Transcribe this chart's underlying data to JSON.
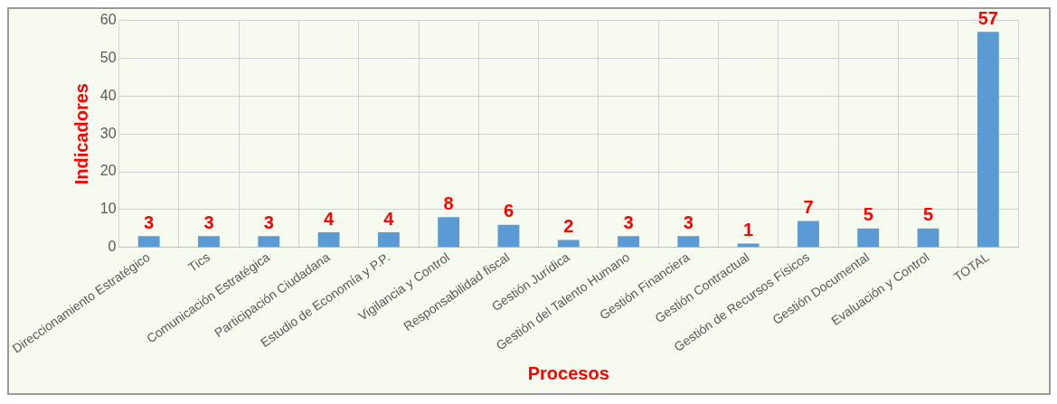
{
  "chart_data": {
    "type": "bar",
    "xlabel": "Procesos",
    "ylabel": "Indicadores",
    "categories": [
      "Direccionamiento Estratégico",
      "Tics",
      "Comunicación Estratégica",
      "Participación Ciudadana",
      "Estudio de Economía y P.P.",
      "Vigilancia y Control",
      "Responsabilidad fiscal",
      "Gestión Jurídica",
      "Gestión del Talento Humano",
      "Gestión Financiera",
      "Gestión Contractual",
      "Gestión de Recursos Físicos",
      "Gestión Documental",
      "Evaluación y Control",
      "TOTAL"
    ],
    "values": [
      3,
      3,
      3,
      4,
      4,
      8,
      6,
      2,
      3,
      3,
      1,
      7,
      5,
      5,
      57
    ],
    "color": "#5b9bd5",
    "ylim": [
      0,
      60
    ],
    "yticks": [
      0,
      10,
      20,
      30,
      40,
      50,
      60
    ],
    "grid": true,
    "data_labels": true
  }
}
